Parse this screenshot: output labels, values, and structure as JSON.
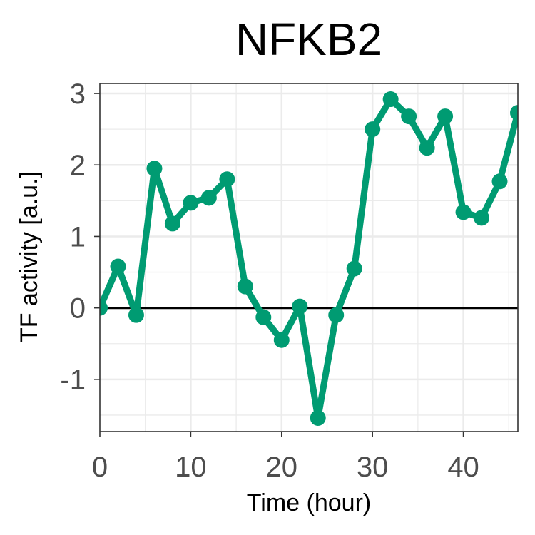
{
  "chart_data": {
    "type": "line",
    "title": "NFKB2",
    "xlabel": "Time (hour)",
    "ylabel": "TF activity [a.u.]",
    "xlim": [
      0,
      46
    ],
    "ylim": [
      -1.73,
      3.14
    ],
    "x_ticks": [
      0,
      10,
      20,
      30,
      40
    ],
    "y_ticks": [
      -1,
      0,
      1,
      2,
      3
    ],
    "x_tick_labels": [
      "0",
      "10",
      "20",
      "30",
      "40"
    ],
    "y_tick_labels": [
      "-1",
      "0",
      "1",
      "2",
      "3"
    ],
    "grid": true,
    "reference_line_y": 0,
    "series": [
      {
        "color": "#009b72",
        "x": [
          0,
          2,
          4,
          6,
          8,
          10,
          12,
          14,
          16,
          18,
          20,
          22,
          24,
          26,
          28,
          30,
          32,
          34,
          36,
          38,
          40,
          42,
          44,
          46
        ],
        "values": [
          0.0,
          0.58,
          -0.1,
          1.95,
          1.18,
          1.47,
          1.54,
          1.8,
          0.3,
          -0.13,
          -0.45,
          0.02,
          -1.54,
          -0.1,
          0.55,
          2.5,
          2.92,
          2.68,
          2.24,
          2.68,
          1.34,
          1.26,
          1.77,
          2.73
        ]
      }
    ]
  }
}
